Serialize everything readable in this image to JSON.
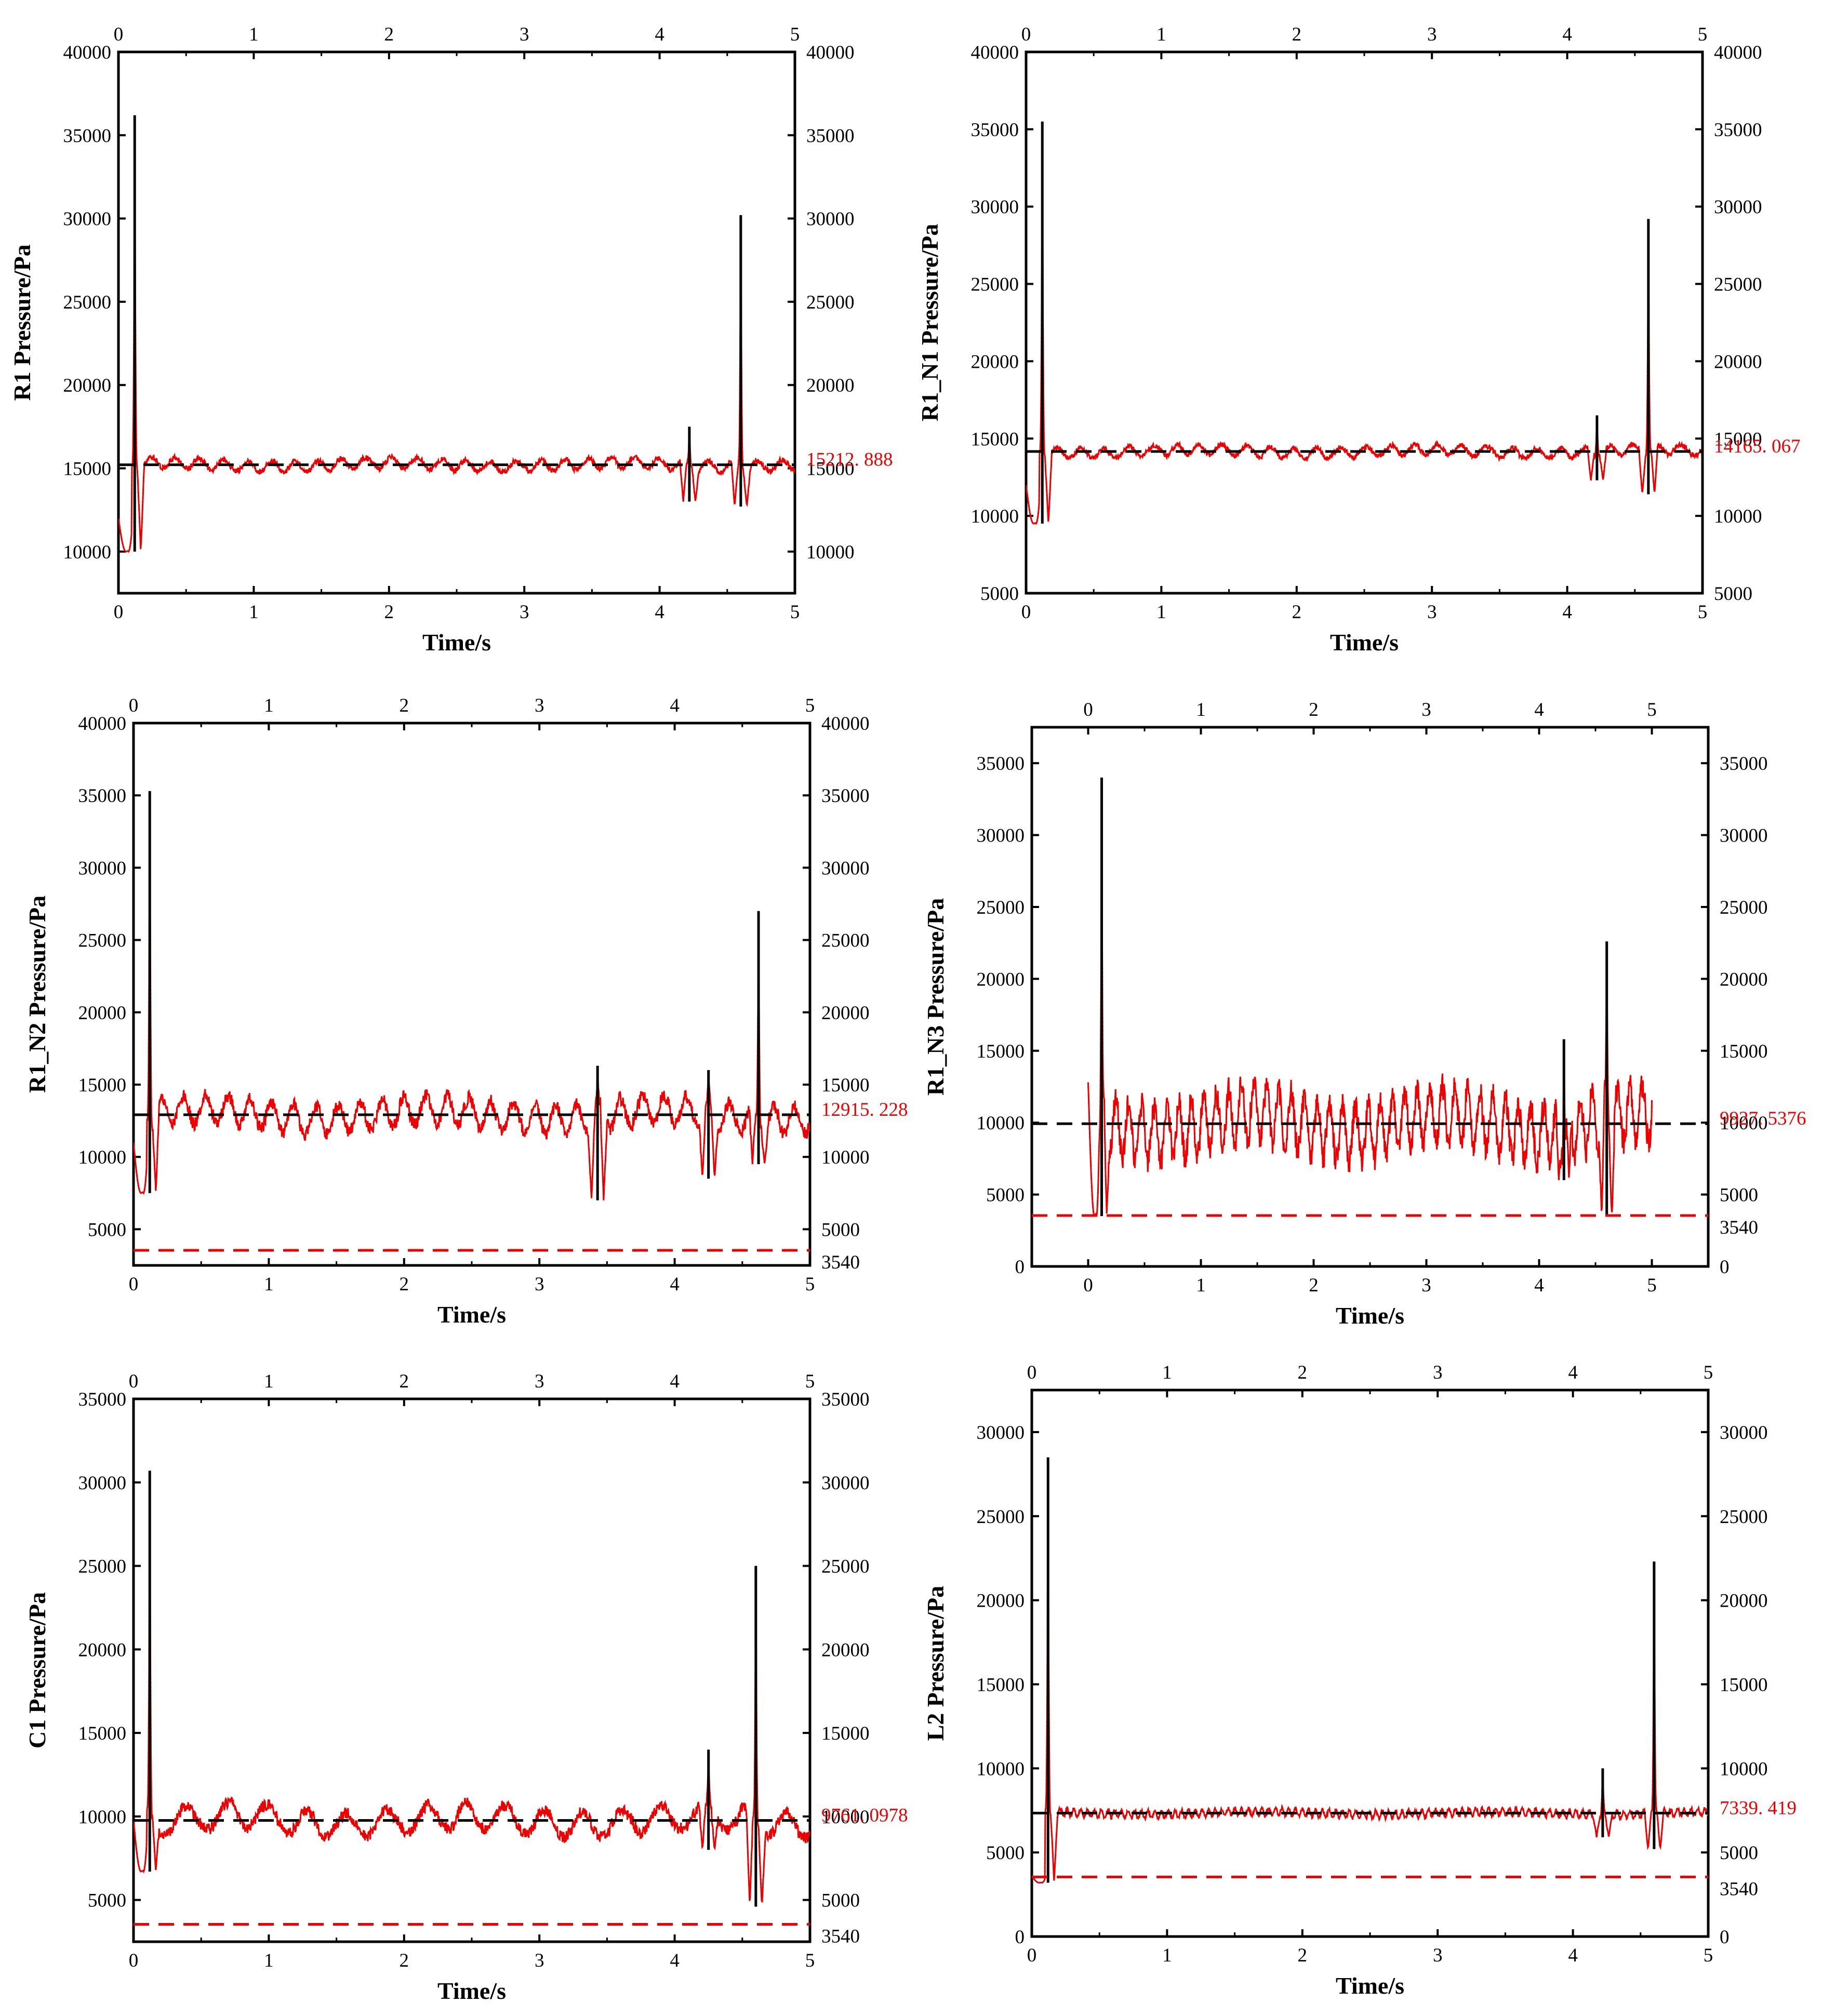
{
  "colors": {
    "signal": "#ee0000",
    "mean_line": "#000000",
    "limit_line": "#ee0000",
    "frame": "#000000",
    "label_red": "#ee0000"
  },
  "chart_data": [
    {
      "type": "line",
      "name": "R1",
      "ylabel": "R1  Pressure/Pa",
      "xlabel": "Time/s",
      "xlim": [
        0,
        5
      ],
      "ylim": [
        7500,
        40000
      ],
      "xticks": [
        0,
        1,
        2,
        3,
        4,
        5
      ],
      "yticks": [
        10000,
        15000,
        20000,
        25000,
        30000,
        35000,
        40000
      ],
      "mean": 15212.888,
      "mean_label": "15212. 888",
      "limit": null,
      "limit_label": "",
      "baseline_noise": 600,
      "osc_period": 0.18,
      "start_value": 12000,
      "start_min": 10000,
      "spikes": [
        {
          "t": 0.12,
          "peak": 36200,
          "dip": 10000
        },
        {
          "t": 4.22,
          "peak": 17500,
          "dip": 13000
        },
        {
          "t": 4.6,
          "peak": 30200,
          "dip": 12700
        }
      ]
    },
    {
      "type": "line",
      "name": "R1_N1",
      "ylabel": "R1_N1  Pressure/Pa",
      "xlabel": "Time/s",
      "xlim": [
        0,
        5
      ],
      "ylim": [
        5000,
        40000
      ],
      "xticks": [
        0,
        1,
        2,
        3,
        4,
        5
      ],
      "yticks": [
        5000,
        10000,
        15000,
        20000,
        25000,
        30000,
        35000,
        40000
      ],
      "mean": 14165.067,
      "mean_label": "14165. 067",
      "limit": null,
      "limit_label": "",
      "baseline_noise": 600,
      "osc_period": 0.18,
      "start_value": 12000,
      "start_min": 9500,
      "spikes": [
        {
          "t": 0.12,
          "peak": 35500,
          "dip": 9500
        },
        {
          "t": 4.22,
          "peak": 16500,
          "dip": 12300
        },
        {
          "t": 4.6,
          "peak": 29200,
          "dip": 11400
        }
      ]
    },
    {
      "type": "line",
      "name": "R1_N2",
      "ylabel": "R1_N2  Pressure/Pa",
      "xlabel": "Time/s",
      "xlim": [
        0,
        5
      ],
      "ylim": [
        2500,
        40000
      ],
      "xticks": [
        0,
        1,
        2,
        3,
        4,
        5
      ],
      "yticks": [
        5000,
        10000,
        15000,
        20000,
        25000,
        30000,
        35000,
        40000
      ],
      "mean": 12915.228,
      "mean_label": "12915. 228",
      "limit": 3540,
      "limit_label": "3540",
      "baseline_noise": 1800,
      "osc_period": 0.16,
      "start_value": 11000,
      "start_min": 7500,
      "spikes": [
        {
          "t": 0.12,
          "peak": 35300,
          "dip": 7500
        },
        {
          "t": 3.43,
          "peak": 16300,
          "dip": 7000
        },
        {
          "t": 4.25,
          "peak": 16000,
          "dip": 8500
        },
        {
          "t": 4.62,
          "peak": 27000,
          "dip": 9500
        }
      ]
    },
    {
      "type": "line",
      "name": "R1_N3",
      "ylabel": "R1_N3  Pressure/Pa",
      "xlabel": "Time/s",
      "xlim": [
        -0.5,
        5.5
      ],
      "ylim": [
        0,
        37500
      ],
      "xticks": [
        0,
        1,
        2,
        3,
        4,
        5
      ],
      "yticks": [
        0,
        5000,
        10000,
        15000,
        20000,
        25000,
        30000,
        35000
      ],
      "mean": 9927.5376,
      "mean_label": "9927. 5376",
      "limit": 3540,
      "limit_label": "3540",
      "baseline_noise": 3500,
      "osc_period": 0.11,
      "start_value": 12800,
      "start_min": 3500,
      "spikes": [
        {
          "t": 0.12,
          "peak": 34000,
          "dip": 3500
        },
        {
          "t": 4.22,
          "peak": 15800,
          "dip": 6000
        },
        {
          "t": 4.6,
          "peak": 22600,
          "dip": 3500
        }
      ]
    },
    {
      "type": "line",
      "name": "C1",
      "ylabel": "C1  Pressure/Pa",
      "xlabel": "Time/s",
      "xlim": [
        0,
        5
      ],
      "ylim": [
        2500,
        35000
      ],
      "xticks": [
        0,
        1,
        2,
        3,
        4,
        5
      ],
      "yticks": [
        5000,
        10000,
        15000,
        20000,
        25000,
        30000,
        35000
      ],
      "mean": 9761.0978,
      "mean_label": "9761. 0978",
      "limit": 3540,
      "limit_label": "3540",
      "baseline_noise": 1400,
      "osc_period": 0.3,
      "start_value": 9800,
      "start_min": 6700,
      "spikes": [
        {
          "t": 0.12,
          "peak": 30700,
          "dip": 6700
        },
        {
          "t": 4.25,
          "peak": 14000,
          "dip": 8000
        },
        {
          "t": 4.6,
          "peak": 25000,
          "dip": 4600
        }
      ]
    },
    {
      "type": "line",
      "name": "L2",
      "ylabel": "L2  Pressure/Pa",
      "xlabel": "Time/s",
      "xlim": [
        0,
        5
      ],
      "ylim": [
        0,
        32500
      ],
      "xticks": [
        0,
        1,
        2,
        3,
        4,
        5
      ],
      "yticks": [
        0,
        5000,
        10000,
        15000,
        20000,
        25000,
        30000
      ],
      "mean": 7339.419,
      "mean_label": "7339. 419",
      "limit": 3540,
      "limit_label": "3540",
      "baseline_noise": 400,
      "osc_period": 0.05,
      "start_value": 3600,
      "start_min": 3200,
      "spikes": [
        {
          "t": 0.12,
          "peak": 28500,
          "dip": 3200
        },
        {
          "t": 4.22,
          "peak": 10000,
          "dip": 5900
        },
        {
          "t": 4.6,
          "peak": 22300,
          "dip": 5200
        }
      ]
    }
  ]
}
